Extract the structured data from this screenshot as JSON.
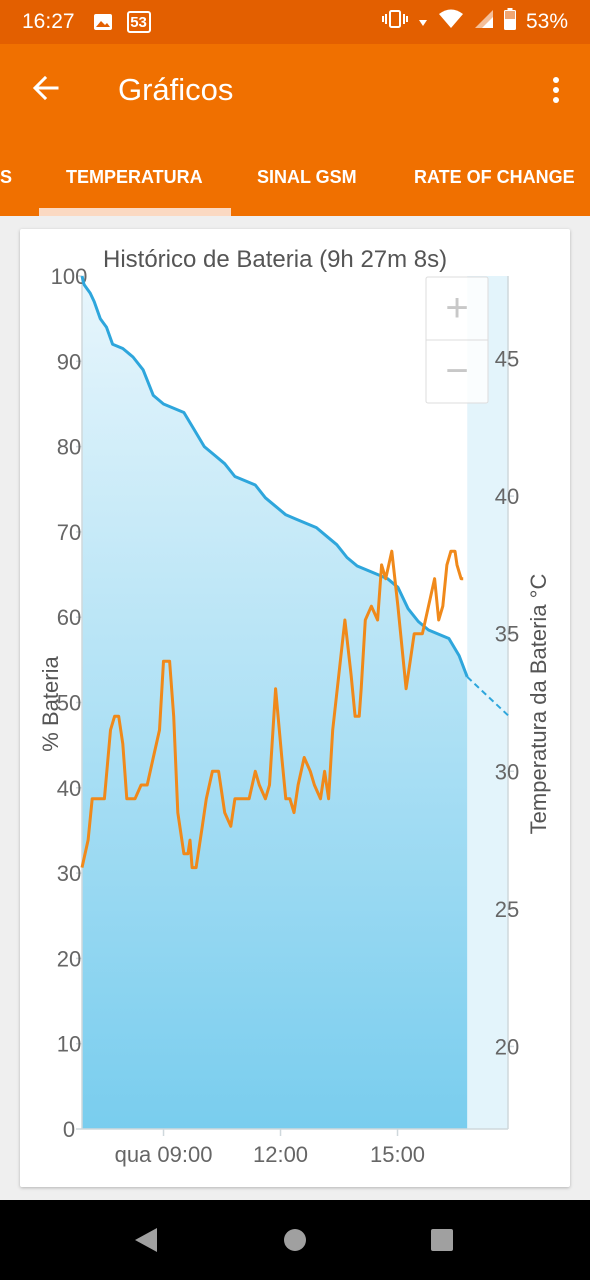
{
  "status_bar": {
    "time": "16:27",
    "notification_badge": "53",
    "battery_percent": "53%",
    "icons": [
      "image-icon",
      "vibrate-icon",
      "arrow-down-icon",
      "wifi-icon",
      "cell-signal-icon",
      "battery-icon"
    ]
  },
  "app_bar": {
    "title": "Gráficos",
    "back_icon": "arrow-left-icon",
    "menu_icon": "more-vertical-icon"
  },
  "tabs": [
    {
      "label": "S",
      "active": false
    },
    {
      "label": "TEMPERATURA",
      "active": true
    },
    {
      "label": "SINAL GSM",
      "active": false
    },
    {
      "label": "RATE OF CHANGE",
      "active": false
    }
  ],
  "chart": {
    "zoom_in_label": "+",
    "zoom_out_label": "−"
  },
  "chart_data": {
    "type": "line",
    "title": "Histórico de Bateria (9h 27m 8s)",
    "ylabel": "% Bateria",
    "y2label": "Temperatura da Bateria °C",
    "xlabel": "",
    "x_ticks": [
      "qua 09:00",
      "12:00",
      "15:00"
    ],
    "y_ticks": [
      0,
      10,
      20,
      30,
      40,
      50,
      60,
      70,
      80,
      90,
      100
    ],
    "y2_ticks": [
      20,
      25,
      30,
      35,
      40,
      45
    ],
    "ylim": [
      0,
      100
    ],
    "y2lim": [
      17,
      48
    ],
    "grid": false,
    "series": [
      {
        "axis": "left",
        "color": "#2ea6dc",
        "fill": true,
        "x": [
          0,
          0.05,
          0.2,
          0.3,
          0.45,
          0.6,
          0.75,
          1,
          1.25,
          1.5,
          1.75,
          2,
          2.25,
          2.5,
          2.75,
          3,
          3.25,
          3.5,
          3.75,
          4,
          4.25,
          4.5,
          4.75,
          5,
          5.25,
          5.5,
          5.75,
          6,
          6.25,
          6.5,
          6.75,
          7,
          7.25,
          7.5,
          7.75,
          8,
          8.25,
          8.5,
          8.75,
          9,
          9.25,
          9.45
        ],
        "values": [
          100,
          99,
          98,
          97,
          95,
          94,
          92,
          91.5,
          90.5,
          89,
          86,
          85,
          84.5,
          84,
          82,
          80,
          79,
          78,
          76.5,
          76,
          75.5,
          74,
          73,
          72,
          71.5,
          71,
          70.5,
          69.5,
          68.5,
          67,
          66,
          65.5,
          65,
          64.5,
          63.5,
          61,
          59.5,
          58.5,
          58,
          57.5,
          55.5,
          53
        ],
        "projection": {
          "x": [
            9.45,
            10.45
          ],
          "values": [
            53,
            48.5
          ]
        }
      },
      {
        "axis": "right",
        "color": "#f0891a",
        "fill": false,
        "x": [
          0,
          0.15,
          0.25,
          0.4,
          0.55,
          0.7,
          0.8,
          0.9,
          1.0,
          1.1,
          1.3,
          1.45,
          1.6,
          1.75,
          1.9,
          2.0,
          2.15,
          2.25,
          2.35,
          2.5,
          2.6,
          2.65,
          2.7,
          2.8,
          2.95,
          3.05,
          3.2,
          3.35,
          3.5,
          3.65,
          3.75,
          3.85,
          4.0,
          4.1,
          4.25,
          4.35,
          4.5,
          4.6,
          4.75,
          4.9,
          5.0,
          5.1,
          5.2,
          5.3,
          5.45,
          5.6,
          5.7,
          5.85,
          5.95,
          6.05,
          6.15,
          6.3,
          6.45,
          6.6,
          6.7,
          6.8,
          6.85,
          6.95,
          7.1,
          7.25,
          7.35,
          7.45,
          7.6,
          7.75,
          7.85,
          7.95,
          8.05,
          8.15,
          8.25,
          8.35,
          8.5,
          8.65,
          8.75,
          8.85,
          8.95,
          9.05,
          9.15,
          9.2,
          9.3,
          9.35
        ],
        "values": [
          26.5,
          27.5,
          29,
          29,
          29,
          31.5,
          32,
          32,
          31,
          29,
          29,
          29.5,
          29.5,
          30.5,
          31.5,
          34,
          34,
          32,
          28.5,
          27,
          27,
          27.5,
          26.5,
          26.5,
          28,
          29,
          30,
          30,
          28.5,
          28,
          29,
          29,
          29,
          29,
          30,
          29.5,
          29,
          29.5,
          33,
          30.5,
          29,
          29,
          28.5,
          29.5,
          30.5,
          30,
          29.5,
          29,
          30,
          29,
          31.5,
          33.5,
          35.5,
          33.5,
          32,
          32,
          33,
          35.5,
          36,
          35.5,
          37.5,
          37,
          38,
          36,
          34.5,
          33,
          34,
          35,
          35,
          35,
          36,
          37,
          35.5,
          36,
          37.5,
          38,
          38,
          37.5,
          37,
          37
        ]
      }
    ]
  }
}
